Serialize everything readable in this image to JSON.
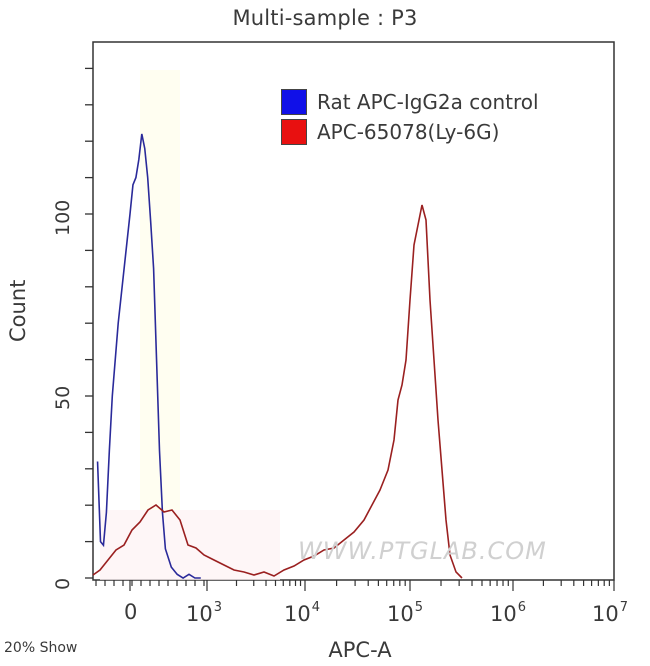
{
  "title": "Multi-sample : P3",
  "footer": "20% Show",
  "watermark": "WWW.PTGLAB.COM",
  "axes": {
    "xlabel": "APC-A",
    "ylabel": "Count",
    "ytick_labels": [
      "0",
      "50",
      "100"
    ],
    "xtick_labels": [
      {
        "base": "0",
        "exp": ""
      },
      {
        "base": "10",
        "exp": "3"
      },
      {
        "base": "10",
        "exp": "4"
      },
      {
        "base": "10",
        "exp": "5"
      },
      {
        "base": "10",
        "exp": "6"
      },
      {
        "base": "10",
        "exp": "7"
      }
    ]
  },
  "legend": [
    {
      "label": "Rat APC-IgG2a control",
      "color": "#1010e8"
    },
    {
      "label": "APC-65078(Ly-6G)",
      "color": "#e81010"
    }
  ],
  "colors": {
    "control": "#2a2a9a",
    "control_fill": "#1010d0",
    "sample": "#8a2a2a",
    "sample_fill": "#e01010",
    "frame": "#333333"
  },
  "chart_data": {
    "type": "line",
    "title": "Multi-sample : P3",
    "xlabel": "APC-A",
    "ylabel": "Count",
    "x_scale": "biexponential (log decades)",
    "xlim": [
      -300,
      10000000
    ],
    "ylim": [
      0,
      140
    ],
    "x_ticks": [
      "0",
      "10^3",
      "10^4",
      "10^5",
      "10^6",
      "10^7"
    ],
    "y_ticks": [
      0,
      50,
      100
    ],
    "legend_position": "upper right",
    "grid": false,
    "series": [
      {
        "name": "Rat APC-IgG2a control",
        "color": "#0000ff",
        "x_decade": [
          -0.55,
          -0.5,
          -0.45,
          -0.4,
          -0.35,
          -0.3,
          -0.2,
          -0.1,
          0.0,
          0.05,
          0.1,
          0.15,
          0.2,
          0.25,
          0.3,
          0.35,
          0.4,
          0.45,
          0.5,
          0.55,
          0.6,
          0.7,
          0.8,
          0.9,
          1.0,
          1.1,
          1.2
        ],
        "x_note": "x positions in decade units relative to the 0 tick (0 = '0', ~1.3 = 10^3)",
        "values": [
          32,
          10,
          9,
          18,
          35,
          50,
          70,
          85,
          100,
          108,
          110,
          115,
          122,
          118,
          110,
          98,
          85,
          60,
          35,
          18,
          8,
          3,
          1,
          0,
          1,
          0,
          0
        ]
      },
      {
        "name": "APC-65078(Ly-6G)",
        "color": "#ff0000",
        "x_points": [
          "0",
          "~300",
          "~1e3",
          "~1e4",
          "~5e4",
          "~8e4",
          "1e5",
          "~1.4e5",
          "~2e5",
          "~3e5"
        ],
        "values_peak": {
          "near_zero": 19,
          "valley_1e3_1e4": 2,
          "main_peak_at": "~1.3e5",
          "main_peak_count": 102
        }
      }
    ]
  }
}
